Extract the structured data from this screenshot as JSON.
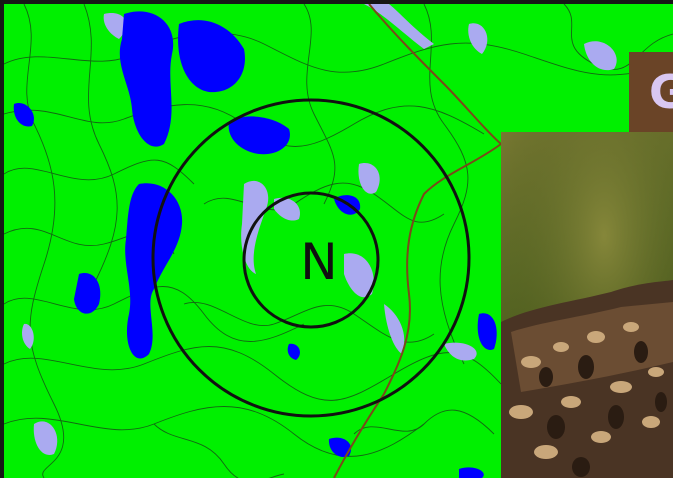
{
  "map": {
    "compass_letter": "N",
    "colors": {
      "land": "#00f000",
      "water": "#0000ff",
      "wetland": "#aaaaf0",
      "contour": "#1a3a1a",
      "road": "#7a4a1a",
      "compass_ring": "#111111"
    }
  },
  "title_tab": {
    "visible_text": "G",
    "background": "#6a4427",
    "text_color": "#d9c7f2"
  },
  "photo": {
    "subject": "hawk-plumage",
    "colors": [
      "#7a7a33",
      "#5d6b26",
      "#3b2a1c",
      "#c9a77a"
    ]
  }
}
